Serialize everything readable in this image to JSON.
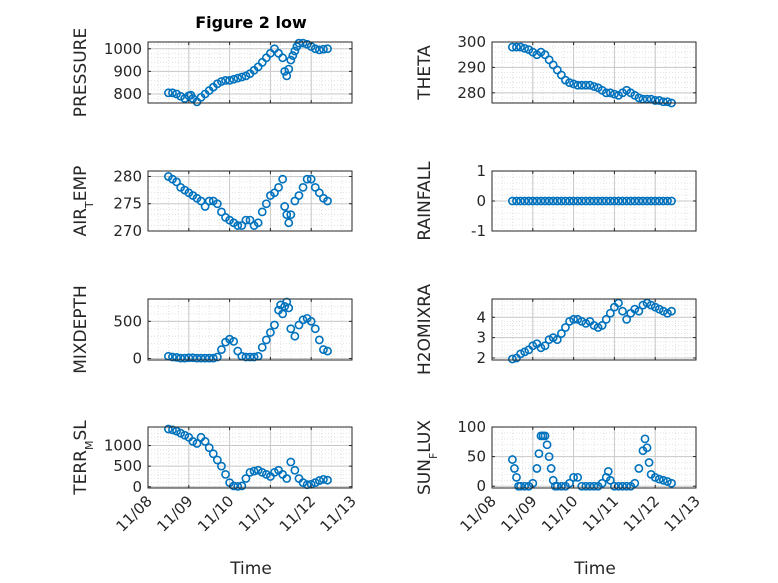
{
  "figure": {
    "title": "Figure 2 low",
    "xlabel": "Time",
    "xticklabels": [
      "11/08",
      "11/09",
      "11/10",
      "11/11",
      "11/12",
      "11/13"
    ],
    "marker_color": "#0072BD"
  },
  "chart_data": [
    {
      "type": "scatter",
      "ylabel": "PRESSURE",
      "ylim": [
        760,
        1030
      ],
      "yticks": [
        800,
        900,
        1000
      ],
      "grid": true,
      "x": [
        8.5,
        8.6,
        8.7,
        8.8,
        8.9,
        9.0,
        9.05,
        9.1,
        9.2,
        9.3,
        9.4,
        9.5,
        9.6,
        9.7,
        9.8,
        9.9,
        10.0,
        10.1,
        10.2,
        10.3,
        10.4,
        10.5,
        10.6,
        10.7,
        10.8,
        10.9,
        11.0,
        11.1,
        11.2,
        11.3,
        11.35,
        11.4,
        11.45,
        11.5,
        11.55,
        11.6,
        11.65,
        11.7,
        11.8,
        11.9,
        12.0,
        12.1,
        12.2,
        12.3,
        12.4
      ],
      "values": [
        805,
        805,
        800,
        790,
        780,
        792,
        795,
        780,
        765,
        785,
        800,
        815,
        830,
        845,
        855,
        860,
        860,
        865,
        870,
        875,
        880,
        890,
        905,
        920,
        940,
        960,
        980,
        1000,
        980,
        960,
        900,
        880,
        910,
        950,
        970,
        990,
        1010,
        1025,
        1025,
        1020,
        1010,
        1000,
        995,
        998,
        1000
      ]
    },
    {
      "type": "scatter",
      "ylabel": "THETA",
      "ylim": [
        276,
        300
      ],
      "yticks": [
        280,
        290,
        300
      ],
      "grid": true,
      "x": [
        8.5,
        8.6,
        8.7,
        8.8,
        8.9,
        9.0,
        9.1,
        9.2,
        9.3,
        9.4,
        9.5,
        9.6,
        9.7,
        9.8,
        9.9,
        10.0,
        10.1,
        10.2,
        10.3,
        10.4,
        10.5,
        10.6,
        10.7,
        10.8,
        10.9,
        11.0,
        11.1,
        11.2,
        11.3,
        11.4,
        11.5,
        11.6,
        11.7,
        11.8,
        11.9,
        12.0,
        12.1,
        12.2,
        12.3,
        12.4
      ],
      "values": [
        298,
        298,
        298,
        297.5,
        297,
        296,
        295,
        296,
        295,
        293,
        291,
        289,
        287,
        285,
        284,
        283.5,
        283,
        283,
        283,
        283,
        282.5,
        282,
        281,
        280,
        280,
        279.5,
        279,
        280,
        281,
        280,
        279,
        278,
        277.5,
        277.5,
        277.5,
        277,
        277,
        276.5,
        276.5,
        276
      ]
    },
    {
      "type": "scatter",
      "ylabel": "AIR_TEMP",
      "ylim": [
        270,
        281
      ],
      "yticks": [
        270,
        275,
        280
      ],
      "grid": true,
      "x": [
        8.5,
        8.6,
        8.7,
        8.8,
        8.9,
        9.0,
        9.1,
        9.2,
        9.3,
        9.4,
        9.5,
        9.6,
        9.7,
        9.8,
        9.9,
        10.0,
        10.1,
        10.2,
        10.3,
        10.4,
        10.5,
        10.6,
        10.7,
        10.8,
        10.9,
        11.0,
        11.1,
        11.2,
        11.3,
        11.35,
        11.4,
        11.45,
        11.5,
        11.6,
        11.7,
        11.8,
        11.9,
        12.0,
        12.1,
        12.2,
        12.3,
        12.4
      ],
      "values": [
        280,
        279.5,
        279,
        278,
        277.5,
        277,
        276.5,
        276,
        275.5,
        274.5,
        275.5,
        275.5,
        275,
        273.5,
        272.5,
        272,
        271.5,
        271,
        271,
        272,
        272,
        271,
        271.5,
        273.5,
        275,
        276.5,
        277,
        278,
        279.5,
        274.5,
        273,
        271.5,
        273,
        275.5,
        276.5,
        278,
        279.5,
        279.5,
        278,
        277,
        276,
        275.5
      ]
    },
    {
      "type": "scatter",
      "ylabel": "RAINFALL",
      "ylim": [
        -1,
        1
      ],
      "yticks": [
        -1,
        0,
        1
      ],
      "grid": true,
      "x": [
        8.5,
        8.6,
        8.7,
        8.8,
        8.9,
        9.0,
        9.1,
        9.2,
        9.3,
        9.4,
        9.5,
        9.6,
        9.7,
        9.8,
        9.9,
        10.0,
        10.1,
        10.2,
        10.3,
        10.4,
        10.5,
        10.6,
        10.7,
        10.8,
        10.9,
        11.0,
        11.1,
        11.2,
        11.3,
        11.4,
        11.5,
        11.6,
        11.7,
        11.8,
        11.9,
        12.0,
        12.1,
        12.2,
        12.3,
        12.4
      ],
      "values": [
        0,
        0,
        0,
        0,
        0,
        0,
        0,
        0,
        0,
        0,
        0,
        0,
        0,
        0,
        0,
        0,
        0,
        0,
        0,
        0,
        0,
        0,
        0,
        0,
        0,
        0,
        0,
        0,
        0,
        0,
        0,
        0,
        0,
        0,
        0,
        0,
        0,
        0,
        0,
        0
      ]
    },
    {
      "type": "scatter",
      "ylabel": "MIXDEPTH",
      "ylim": [
        -20,
        800
      ],
      "yticks": [
        0,
        500
      ],
      "grid": true,
      "x": [
        8.5,
        8.6,
        8.7,
        8.8,
        8.9,
        9.0,
        9.1,
        9.2,
        9.3,
        9.4,
        9.5,
        9.6,
        9.7,
        9.8,
        9.9,
        10.0,
        10.1,
        10.2,
        10.3,
        10.4,
        10.5,
        10.6,
        10.7,
        10.8,
        10.9,
        11.0,
        11.1,
        11.2,
        11.25,
        11.3,
        11.35,
        11.4,
        11.45,
        11.5,
        11.6,
        11.7,
        11.8,
        11.9,
        12.0,
        12.1,
        12.2,
        12.3,
        12.4
      ],
      "values": [
        30,
        20,
        15,
        5,
        5,
        10,
        10,
        5,
        5,
        5,
        5,
        5,
        20,
        120,
        220,
        260,
        230,
        100,
        30,
        20,
        20,
        20,
        30,
        150,
        250,
        350,
        450,
        650,
        720,
        600,
        700,
        760,
        680,
        400,
        300,
        450,
        520,
        540,
        500,
        400,
        250,
        120,
        100
      ]
    },
    {
      "type": "scatter",
      "ylabel": "H2OMIXRA",
      "ylim": [
        1.9,
        4.9
      ],
      "yticks": [
        2,
        3,
        4
      ],
      "grid": true,
      "x": [
        8.5,
        8.6,
        8.7,
        8.8,
        8.9,
        9.0,
        9.1,
        9.2,
        9.3,
        9.4,
        9.5,
        9.6,
        9.7,
        9.8,
        9.9,
        10.0,
        10.1,
        10.2,
        10.3,
        10.4,
        10.5,
        10.6,
        10.7,
        10.8,
        10.9,
        11.0,
        11.1,
        11.2,
        11.3,
        11.4,
        11.5,
        11.6,
        11.7,
        11.8,
        11.9,
        12.0,
        12.1,
        12.2,
        12.3,
        12.4
      ],
      "values": [
        1.95,
        2.0,
        2.2,
        2.3,
        2.4,
        2.6,
        2.7,
        2.5,
        2.6,
        2.9,
        3.0,
        2.9,
        3.2,
        3.5,
        3.8,
        3.9,
        3.9,
        3.8,
        3.7,
        3.8,
        3.6,
        3.5,
        3.6,
        3.9,
        4.2,
        4.5,
        4.7,
        4.3,
        3.9,
        4.2,
        4.4,
        4.3,
        4.6,
        4.7,
        4.6,
        4.5,
        4.4,
        4.3,
        4.2,
        4.3
      ]
    },
    {
      "type": "scatter",
      "ylabel": "TERR_MSL",
      "ylim": [
        -30,
        1450
      ],
      "yticks": [
        0,
        500,
        1000
      ],
      "grid": true,
      "x": [
        8.5,
        8.6,
        8.7,
        8.8,
        8.9,
        9.0,
        9.1,
        9.2,
        9.3,
        9.4,
        9.5,
        9.6,
        9.7,
        9.8,
        9.9,
        10.0,
        10.1,
        10.2,
        10.3,
        10.4,
        10.5,
        10.6,
        10.7,
        10.8,
        10.9,
        11.0,
        11.1,
        11.2,
        11.3,
        11.4,
        11.5,
        11.6,
        11.7,
        11.8,
        11.9,
        12.0,
        12.1,
        12.2,
        12.3,
        12.4
      ],
      "values": [
        1400,
        1380,
        1350,
        1300,
        1250,
        1200,
        1100,
        1050,
        1200,
        1100,
        950,
        800,
        650,
        500,
        300,
        100,
        20,
        10,
        20,
        200,
        350,
        380,
        400,
        350,
        300,
        250,
        350,
        400,
        300,
        200,
        600,
        400,
        200,
        100,
        50,
        60,
        100,
        150,
        180,
        160
      ]
    },
    {
      "type": "scatter",
      "ylabel": "SUN_FLUX",
      "ylim": [
        -3,
        100
      ],
      "yticks": [
        0,
        50,
        100
      ],
      "grid": true,
      "x": [
        8.5,
        8.55,
        8.6,
        8.65,
        8.7,
        8.8,
        8.9,
        9.0,
        9.1,
        9.15,
        9.2,
        9.25,
        9.3,
        9.35,
        9.4,
        9.45,
        9.5,
        9.55,
        9.6,
        9.7,
        9.8,
        9.9,
        10.0,
        10.1,
        10.2,
        10.3,
        10.4,
        10.5,
        10.6,
        10.7,
        10.8,
        10.85,
        10.9,
        11.0,
        11.1,
        11.2,
        11.3,
        11.4,
        11.5,
        11.6,
        11.7,
        11.75,
        11.8,
        11.85,
        11.9,
        12.0,
        12.1,
        12.2,
        12.3,
        12.4
      ],
      "values": [
        45,
        30,
        15,
        0,
        0,
        0,
        0,
        5,
        30,
        55,
        85,
        85,
        85,
        70,
        50,
        30,
        10,
        0,
        0,
        0,
        0,
        5,
        15,
        15,
        0,
        0,
        0,
        0,
        0,
        5,
        15,
        25,
        10,
        0,
        0,
        0,
        0,
        0,
        5,
        30,
        60,
        80,
        65,
        40,
        20,
        15,
        12,
        10,
        8,
        5
      ]
    }
  ]
}
